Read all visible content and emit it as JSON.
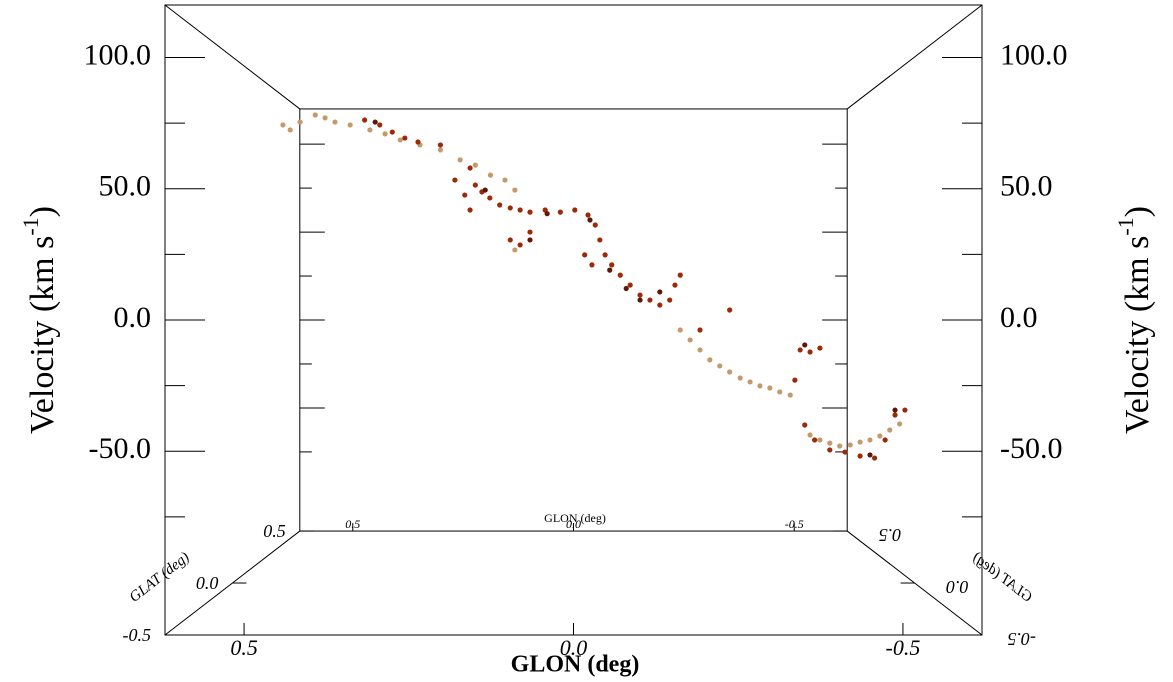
{
  "chart_data": {
    "type": "scatter3d",
    "xlabel": "GLON (deg)",
    "ylabel": [
      "Velocity (km s",
      "-1",
      ")"
    ],
    "zlabel": "GLAT (deg)",
    "xlim": [
      0.62,
      -0.62
    ],
    "ylim": [
      -120,
      120
    ],
    "zlim": [
      -0.5,
      0.5
    ],
    "xticks": [
      {
        "value": 0.5,
        "label": "0.5"
      },
      {
        "value": 0,
        "label": "0.0"
      },
      {
        "value": -0.5,
        "label": "-0.5"
      }
    ],
    "yticks": [
      {
        "value": -50,
        "label": "-50.0"
      },
      {
        "value": 0,
        "label": "0.0"
      },
      {
        "value": 50,
        "label": "50.0"
      },
      {
        "value": 100,
        "label": "100.0"
      }
    ],
    "yminorticks": [
      -75,
      -25,
      25,
      75
    ],
    "zticks": [
      {
        "value": -0.5,
        "label": "-0.5"
      },
      {
        "value": 0,
        "label": "0.0"
      },
      {
        "value": 0.5,
        "label": "0.5"
      }
    ],
    "series": [
      {
        "color": "#c49a6c",
        "x": [
          0.441,
          0.43,
          0.415,
          0.392,
          0.377,
          0.362,
          0.339,
          0.309,
          0.286,
          0.263,
          0.233,
          0.202,
          0.172,
          0.149,
          0.126,
          0.104,
          0.089,
          0.089,
          -0.162,
          -0.177,
          -0.192,
          -0.207,
          -0.222,
          -0.237,
          -0.253,
          -0.268,
          -0.283,
          -0.298,
          -0.313,
          -0.329,
          -0.359,
          -0.374,
          -0.389,
          -0.404,
          -0.42,
          -0.435,
          -0.45,
          -0.465,
          -0.48,
          -0.495
        ],
        "values": [
          74.3,
          72.4,
          75.4,
          78.1,
          77.0,
          75.4,
          74.3,
          72.4,
          70.9,
          68.6,
          66.7,
          64.8,
          61.0,
          59.0,
          55.2,
          53.3,
          49.5,
          26.7,
          -3.8,
          -7.6,
          -11.4,
          -15.2,
          -17.5,
          -19.8,
          -22.1,
          -23.6,
          -25.1,
          -25.9,
          -27.4,
          -28.6,
          -43.8,
          -45.7,
          -46.9,
          -48.0,
          -47.6,
          -46.5,
          -45.7,
          -44.2,
          -41.9,
          -39.6
        ]
      },
      {
        "color": "#9a2a08",
        "x": [
          0.317,
          0.294,
          0.275,
          0.256,
          0.236,
          0.157,
          0.149,
          0.139,
          0.127,
          0.112,
          0.096,
          0.081,
          0.066,
          0.043,
          0.02,
          -0.002,
          -0.022,
          -0.033,
          -0.04,
          -0.048,
          -0.058,
          -0.071,
          -0.086,
          -0.101,
          -0.116,
          -0.131,
          -0.146,
          -0.154,
          -0.162,
          -0.192,
          0.096,
          0.081,
          0.066,
          -0.017,
          -0.028,
          -0.344,
          -0.359,
          -0.374,
          -0.336,
          -0.351,
          -0.366,
          -0.389,
          -0.412,
          -0.435,
          -0.457,
          -0.473,
          -0.488,
          -0.503,
          0.165,
          0.157,
          0.18,
          0.202,
          -0.237
        ],
        "values": [
          76.2,
          74.3,
          71.6,
          69.3,
          67.8,
          57.9,
          51.4,
          48.8,
          46.5,
          43.8,
          42.7,
          41.9,
          41.1,
          41.9,
          41.1,
          41.9,
          40.0,
          36.2,
          30.5,
          24.8,
          21.0,
          17.1,
          13.3,
          9.5,
          7.6,
          5.7,
          7.6,
          13.3,
          17.1,
          -3.8,
          30.5,
          28.6,
          33.5,
          24.8,
          21.0,
          -11.4,
          -12.2,
          -10.7,
          -22.9,
          -40.0,
          -45.7,
          -49.5,
          -50.3,
          -51.8,
          -52.6,
          -45.7,
          -36.2,
          -34.3,
          47.6,
          41.9,
          53.3,
          66.7,
          3.8
        ]
      },
      {
        "color": "#5c1a05",
        "x": [
          0.301,
          0.134,
          -0.025,
          -0.101,
          -0.131,
          -0.351,
          -0.45,
          -0.488,
          0.066,
          -0.055,
          0.04,
          -0.08
        ],
        "values": [
          75.4,
          49.5,
          38.1,
          7.6,
          10.7,
          -9.5,
          -51.4,
          -34.3,
          30.5,
          19.0,
          40.5,
          12.0
        ]
      }
    ]
  }
}
